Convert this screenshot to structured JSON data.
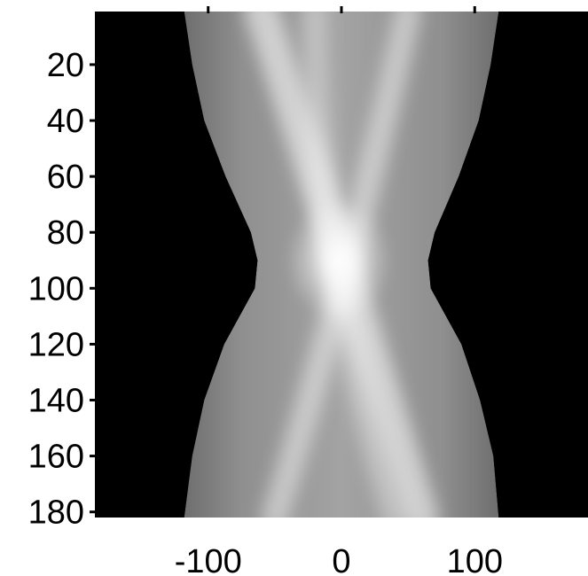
{
  "chart_data": {
    "type": "heatmap",
    "title": "",
    "xlabel": "",
    "ylabel": "",
    "xlim": [
      -185,
      185
    ],
    "ylim": [
      1,
      182
    ],
    "y_inverted": true,
    "xticks": [
      -100,
      0,
      100
    ],
    "xtick_labels": [
      "-100",
      "0",
      "100"
    ],
    "yticks": [
      20,
      40,
      60,
      80,
      100,
      120,
      140,
      160,
      180
    ],
    "ytick_labels": [
      "20",
      "40",
      "60",
      "80",
      "100",
      "120",
      "140",
      "160",
      "180"
    ],
    "colormap": "gray",
    "background_value": 0,
    "support_boundary": [
      {
        "y": 1,
        "x_min": -118,
        "x_max": 118
      },
      {
        "y": 20,
        "x_min": -112,
        "x_max": 112
      },
      {
        "y": 40,
        "x_min": -103,
        "x_max": 103
      },
      {
        "y": 60,
        "x_min": -87,
        "x_max": 88
      },
      {
        "y": 80,
        "x_min": -68,
        "x_max": 70
      },
      {
        "y": 90,
        "x_min": -63,
        "x_max": 65
      },
      {
        "y": 100,
        "x_min": -65,
        "x_max": 67
      },
      {
        "y": 120,
        "x_min": -88,
        "x_max": 90
      },
      {
        "y": 140,
        "x_min": -103,
        "x_max": 104
      },
      {
        "y": 160,
        "x_min": -112,
        "x_max": 114
      },
      {
        "y": 182,
        "x_min": -118,
        "x_max": 118
      }
    ],
    "bright_bands": [
      {
        "name": "",
        "points": [
          {
            "y": 1,
            "x": -60
          },
          {
            "y": 90,
            "x": 0
          },
          {
            "y": 182,
            "x": 60
          }
        ]
      },
      {
        "name": "",
        "points": [
          {
            "y": 1,
            "x": -20
          },
          {
            "y": 90,
            "x": -5
          },
          {
            "y": 182,
            "x": 40
          }
        ]
      },
      {
        "name": "",
        "points": [
          {
            "y": 1,
            "x": 50
          },
          {
            "y": 90,
            "x": 5
          },
          {
            "y": 182,
            "x": -50
          }
        ]
      },
      {
        "name": "",
        "points": [
          {
            "y": 1,
            "x": 0
          },
          {
            "y": 182,
            "x": 0
          }
        ]
      }
    ],
    "peak": {
      "x": -2,
      "y": 90
    }
  }
}
